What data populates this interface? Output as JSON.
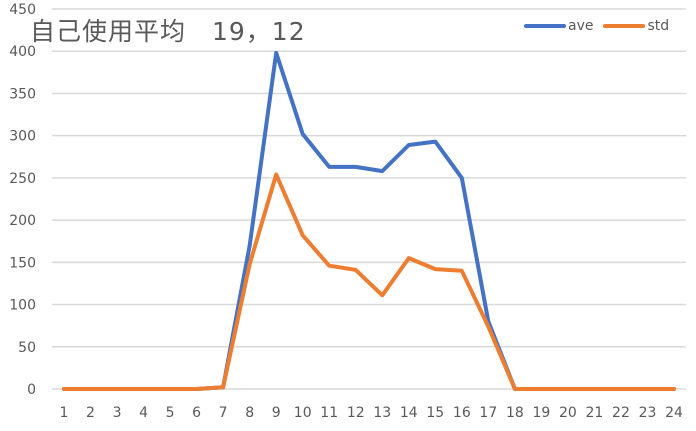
{
  "chart_data": {
    "type": "line",
    "title": "自己使用平均　19，12",
    "xlabel": "",
    "ylabel": "",
    "x": [
      1,
      2,
      3,
      4,
      5,
      6,
      7,
      8,
      9,
      10,
      11,
      12,
      13,
      14,
      15,
      16,
      17,
      18,
      19,
      20,
      21,
      22,
      23,
      24
    ],
    "categories": [
      "1",
      "2",
      "3",
      "4",
      "5",
      "6",
      "7",
      "8",
      "9",
      "10",
      "11",
      "12",
      "13",
      "14",
      "15",
      "16",
      "17",
      "18",
      "19",
      "20",
      "21",
      "22",
      "23",
      "24"
    ],
    "series": [
      {
        "name": "ave",
        "color": "#4472C4",
        "values": [
          0,
          0,
          0,
          0,
          0,
          0,
          2,
          170,
          398,
          302,
          263,
          263,
          258,
          289,
          293,
          250,
          80,
          0,
          0,
          0,
          0,
          0,
          0,
          0
        ]
      },
      {
        "name": "std",
        "color": "#ED7D31",
        "values": [
          0,
          0,
          0,
          0,
          0,
          0,
          2,
          148,
          254,
          182,
          146,
          141,
          111,
          155,
          142,
          140,
          74,
          0,
          0,
          0,
          0,
          0,
          0,
          0
        ]
      }
    ],
    "ylim": [
      0,
      450
    ],
    "yticks": [
      0,
      50,
      100,
      150,
      200,
      250,
      300,
      350,
      400,
      450
    ],
    "grid": true,
    "legend_position": "top-right"
  },
  "title": {
    "text": "自己使用平均　19，12"
  },
  "legend": {
    "items": [
      {
        "label": "ave",
        "color": "#4472C4"
      },
      {
        "label": "std",
        "color": "#ED7D31"
      }
    ]
  }
}
